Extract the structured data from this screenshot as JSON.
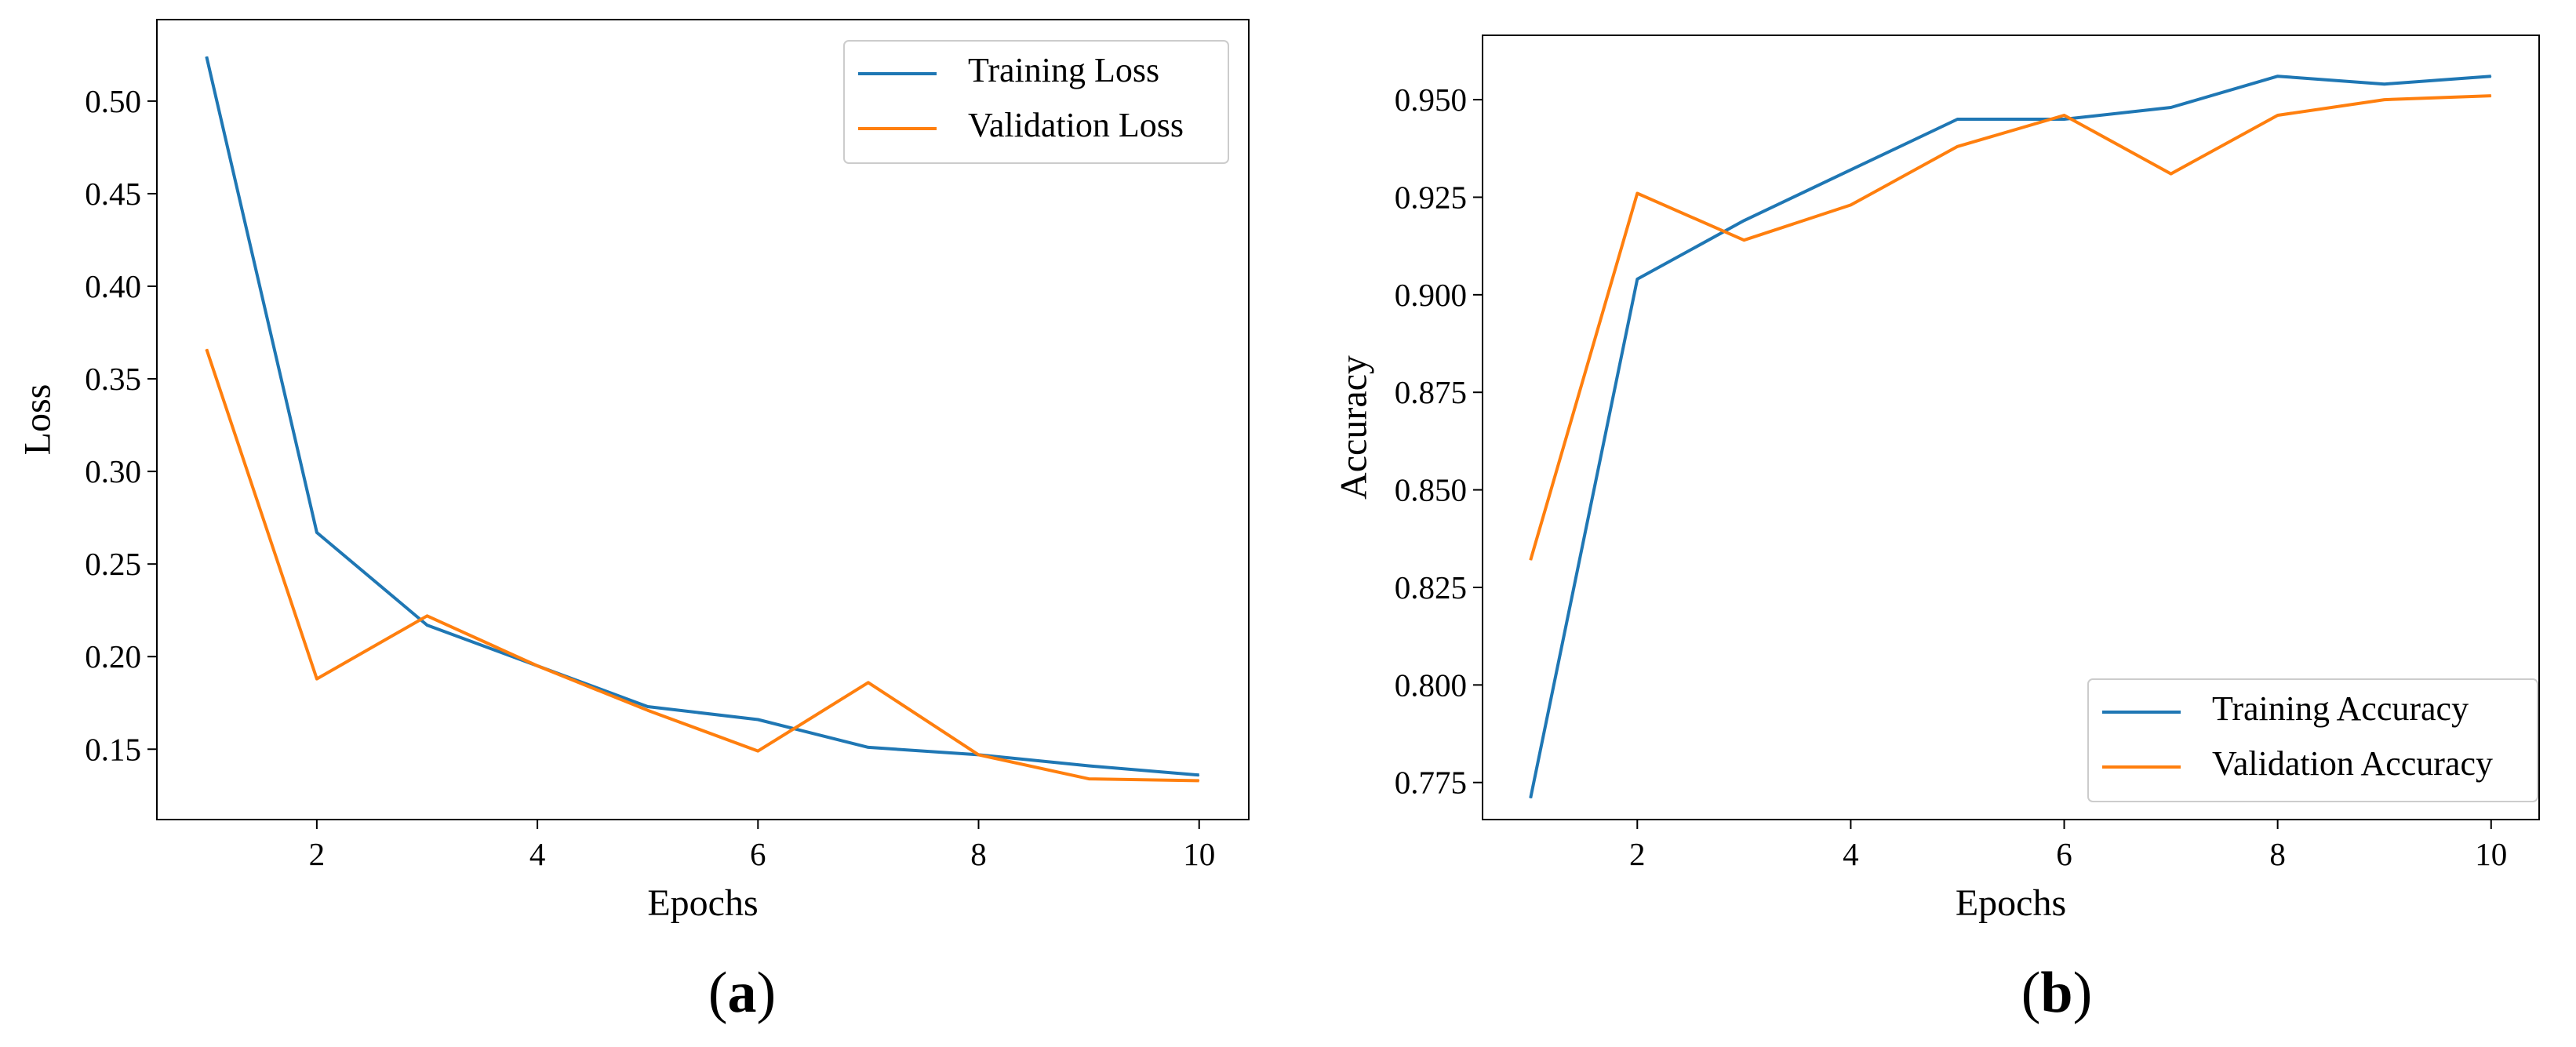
{
  "chart_data": [
    {
      "type": "line",
      "panel_label": "(a)",
      "panel_letter": "a",
      "xlabel": "Epochs",
      "ylabel": "Loss",
      "x": [
        1,
        2,
        3,
        4,
        5,
        6,
        7,
        8,
        9,
        10
      ],
      "xlim": [
        0.55,
        10.45
      ],
      "ylim": [
        0.112,
        0.544
      ],
      "xticks": [
        2,
        4,
        6,
        8,
        10
      ],
      "yticks": [
        0.15,
        0.2,
        0.25,
        0.3,
        0.35,
        0.4,
        0.45,
        0.5
      ],
      "ytick_labels": [
        "0.15",
        "0.20",
        "0.25",
        "0.30",
        "0.35",
        "0.40",
        "0.45",
        "0.50"
      ],
      "legend_position": "top-right",
      "grid": false,
      "series": [
        {
          "name": "Training Loss",
          "color": "#1f77b4",
          "values": [
            0.524,
            0.267,
            0.217,
            0.195,
            0.173,
            0.166,
            0.151,
            0.147,
            0.141,
            0.136
          ]
        },
        {
          "name": "Validation Loss",
          "color": "#ff7f0e",
          "values": [
            0.366,
            0.188,
            0.222,
            0.195,
            0.171,
            0.149,
            0.186,
            0.147,
            0.134,
            0.133
          ]
        }
      ]
    },
    {
      "type": "line",
      "panel_label": "(b)",
      "panel_letter": "b",
      "xlabel": "Epochs",
      "ylabel": "Accuracy",
      "x": [
        1,
        2,
        3,
        4,
        5,
        6,
        7,
        8,
        9,
        10
      ],
      "xlim": [
        0.55,
        10.45
      ],
      "ylim": [
        0.7655,
        0.9665
      ],
      "xticks": [
        2,
        4,
        6,
        8,
        10
      ],
      "yticks": [
        0.775,
        0.8,
        0.825,
        0.85,
        0.875,
        0.9,
        0.925,
        0.95
      ],
      "ytick_labels": [
        "0.775",
        "0.800",
        "0.825",
        "0.850",
        "0.875",
        "0.900",
        "0.925",
        "0.950"
      ],
      "legend_position": "bottom-right",
      "grid": false,
      "series": [
        {
          "name": "Training Accuracy",
          "color": "#1f77b4",
          "values": [
            0.771,
            0.904,
            0.919,
            0.932,
            0.945,
            0.945,
            0.948,
            0.956,
            0.954,
            0.956
          ]
        },
        {
          "name": "Validation Accuracy",
          "color": "#ff7f0e",
          "values": [
            0.832,
            0.926,
            0.914,
            0.923,
            0.938,
            0.946,
            0.931,
            0.946,
            0.95,
            0.951
          ]
        }
      ]
    }
  ]
}
